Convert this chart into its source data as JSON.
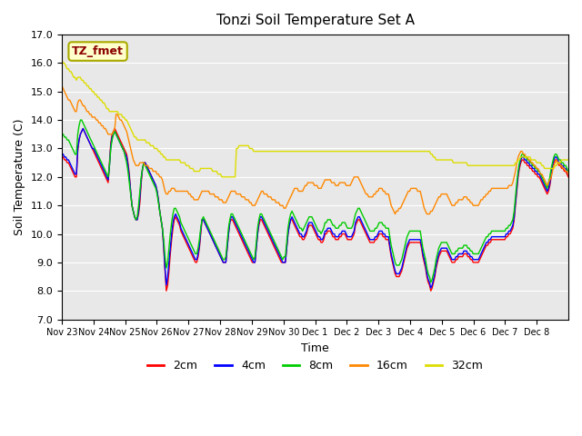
{
  "title": "Tonzi Soil Temperature Set A",
  "xlabel": "Time",
  "ylabel": "Soil Temperature (C)",
  "ylim": [
    7.0,
    17.0
  ],
  "yticks": [
    7.0,
    8.0,
    9.0,
    10.0,
    11.0,
    12.0,
    13.0,
    14.0,
    15.0,
    16.0,
    17.0
  ],
  "plot_bg_color": "#e8e8e8",
  "legend_label": "TZ_fmet",
  "series": {
    "2cm": {
      "color": "#ff0000"
    },
    "4cm": {
      "color": "#0000ff"
    },
    "8cm": {
      "color": "#00cc00"
    },
    "16cm": {
      "color": "#ff8800"
    },
    "32cm": {
      "color": "#dddd00"
    }
  },
  "xtick_labels": [
    "Nov 23",
    "Nov 24",
    "Nov 25",
    "Nov 26",
    "Nov 27",
    "Nov 28",
    "Nov 29",
    "Nov 30",
    "Dec 1",
    "Dec 2",
    "Dec 3",
    "Dec 4",
    "Dec 5",
    "Dec 6",
    "Dec 7",
    "Dec 8"
  ],
  "data_2cm": [
    12.7,
    12.7,
    12.6,
    12.6,
    12.5,
    12.5,
    12.4,
    12.3,
    12.2,
    12.1,
    12.0,
    12.0,
    12.9,
    13.3,
    13.5,
    13.6,
    13.7,
    13.6,
    13.5,
    13.4,
    13.3,
    13.2,
    13.1,
    13.0,
    12.9,
    12.8,
    12.7,
    12.6,
    12.5,
    12.4,
    12.3,
    12.2,
    12.1,
    12.0,
    11.9,
    11.8,
    12.5,
    13.2,
    13.5,
    13.6,
    13.7,
    13.6,
    13.5,
    13.4,
    13.3,
    13.2,
    13.1,
    13.0,
    12.9,
    12.8,
    12.5,
    12.1,
    11.5,
    11.0,
    10.8,
    10.6,
    10.5,
    10.5,
    10.7,
    11.1,
    11.8,
    12.3,
    12.5,
    12.5,
    12.4,
    12.3,
    12.2,
    12.1,
    12.0,
    11.9,
    11.8,
    11.7,
    11.5,
    11.2,
    10.8,
    10.5,
    10.2,
    9.5,
    8.7,
    8.0,
    8.2,
    8.7,
    9.3,
    9.8,
    10.2,
    10.5,
    10.6,
    10.5,
    10.4,
    10.3,
    10.1,
    10.0,
    9.9,
    9.8,
    9.7,
    9.6,
    9.5,
    9.4,
    9.3,
    9.2,
    9.1,
    9.0,
    9.0,
    9.2,
    9.5,
    10.0,
    10.5,
    10.5,
    10.4,
    10.3,
    10.2,
    10.1,
    10.0,
    9.9,
    9.8,
    9.7,
    9.6,
    9.5,
    9.4,
    9.3,
    9.2,
    9.1,
    9.0,
    9.0,
    9.0,
    9.5,
    10.0,
    10.4,
    10.5,
    10.5,
    10.4,
    10.3,
    10.2,
    10.1,
    10.0,
    9.9,
    9.8,
    9.7,
    9.6,
    9.5,
    9.4,
    9.3,
    9.2,
    9.1,
    9.0,
    9.0,
    9.0,
    9.5,
    10.0,
    10.3,
    10.5,
    10.5,
    10.4,
    10.3,
    10.2,
    10.1,
    10.0,
    9.9,
    9.8,
    9.7,
    9.6,
    9.5,
    9.4,
    9.3,
    9.2,
    9.1,
    9.0,
    9.0,
    9.0,
    9.0,
    9.5,
    10.0,
    10.3,
    10.5,
    10.5,
    10.4,
    10.3,
    10.2,
    10.1,
    10.0,
    9.9,
    9.9,
    9.8,
    9.8,
    9.9,
    10.0,
    10.2,
    10.3,
    10.3,
    10.3,
    10.2,
    10.1,
    10.0,
    9.9,
    9.8,
    9.8,
    9.7,
    9.7,
    9.8,
    10.0,
    10.0,
    10.1,
    10.1,
    10.1,
    10.0,
    9.9,
    9.9,
    9.8,
    9.8,
    9.8,
    9.9,
    9.9,
    10.0,
    10.0,
    10.0,
    9.9,
    9.8,
    9.8,
    9.8,
    9.8,
    9.9,
    10.0,
    10.3,
    10.4,
    10.5,
    10.5,
    10.4,
    10.3,
    10.2,
    10.1,
    10.0,
    9.9,
    9.8,
    9.7,
    9.7,
    9.7,
    9.7,
    9.8,
    9.8,
    9.9,
    10.0,
    10.0,
    10.0,
    9.9,
    9.9,
    9.8,
    9.8,
    9.8,
    9.5,
    9.2,
    9.0,
    8.8,
    8.6,
    8.5,
    8.5,
    8.5,
    8.6,
    8.7,
    8.9,
    9.1,
    9.3,
    9.5,
    9.6,
    9.7,
    9.7,
    9.7,
    9.7,
    9.7,
    9.7,
    9.7,
    9.7,
    9.7,
    9.5,
    9.2,
    9.0,
    8.8,
    8.5,
    8.3,
    8.2,
    8.0,
    8.1,
    8.3,
    8.5,
    8.8,
    9.0,
    9.2,
    9.3,
    9.4,
    9.4,
    9.4,
    9.4,
    9.4,
    9.3,
    9.2,
    9.1,
    9.0,
    9.0,
    9.0,
    9.1,
    9.1,
    9.2,
    9.2,
    9.2,
    9.2,
    9.3,
    9.3,
    9.3,
    9.2,
    9.2,
    9.1,
    9.1,
    9.0,
    9.0,
    9.0,
    9.0,
    9.0,
    9.1,
    9.2,
    9.3,
    9.4,
    9.5,
    9.6,
    9.6,
    9.7,
    9.7,
    9.8,
    9.8,
    9.8,
    9.8,
    9.8,
    9.8,
    9.8,
    9.8,
    9.8,
    9.8,
    9.8,
    9.9,
    9.9,
    10.0,
    10.0,
    10.1,
    10.2,
    10.5,
    11.0,
    11.5,
    12.0,
    12.3,
    12.5,
    12.6,
    12.6,
    12.5,
    12.5,
    12.4,
    12.4,
    12.3,
    12.3,
    12.2,
    12.2,
    12.1,
    12.1,
    12.0,
    12.0,
    11.9,
    11.8,
    11.7,
    11.6,
    11.5,
    11.4,
    11.5,
    11.7,
    12.0,
    12.3,
    12.5,
    12.6,
    12.6,
    12.5,
    12.4,
    12.4,
    12.3,
    12.3,
    12.2,
    12.2,
    12.1,
    12.0
  ],
  "data_4cm": [
    12.8,
    12.8,
    12.7,
    12.7,
    12.6,
    12.6,
    12.5,
    12.4,
    12.3,
    12.2,
    12.1,
    12.1,
    13.0,
    13.3,
    13.5,
    13.6,
    13.7,
    13.6,
    13.5,
    13.4,
    13.3,
    13.2,
    13.1,
    13.0,
    13.0,
    12.9,
    12.8,
    12.7,
    12.6,
    12.5,
    12.4,
    12.3,
    12.2,
    12.1,
    12.0,
    11.9,
    12.4,
    13.1,
    13.4,
    13.5,
    13.6,
    13.5,
    13.4,
    13.3,
    13.2,
    13.1,
    13.0,
    12.9,
    12.8,
    12.7,
    12.4,
    12.0,
    11.5,
    11.0,
    10.8,
    10.6,
    10.5,
    10.5,
    10.8,
    11.3,
    11.9,
    12.3,
    12.5,
    12.5,
    12.4,
    12.3,
    12.2,
    12.1,
    12.0,
    11.9,
    11.8,
    11.7,
    11.5,
    11.2,
    10.8,
    10.5,
    10.2,
    9.6,
    8.8,
    8.2,
    8.5,
    9.0,
    9.5,
    10.0,
    10.4,
    10.6,
    10.7,
    10.6,
    10.5,
    10.4,
    10.2,
    10.1,
    10.0,
    9.9,
    9.8,
    9.7,
    9.6,
    9.5,
    9.4,
    9.3,
    9.2,
    9.1,
    9.1,
    9.3,
    9.6,
    10.1,
    10.5,
    10.5,
    10.4,
    10.3,
    10.2,
    10.1,
    10.0,
    9.9,
    9.8,
    9.7,
    9.6,
    9.5,
    9.4,
    9.3,
    9.2,
    9.1,
    9.0,
    9.0,
    9.0,
    9.5,
    10.0,
    10.4,
    10.6,
    10.6,
    10.5,
    10.4,
    10.3,
    10.2,
    10.1,
    10.0,
    9.9,
    9.8,
    9.7,
    9.6,
    9.5,
    9.4,
    9.3,
    9.2,
    9.1,
    9.0,
    9.0,
    9.5,
    10.0,
    10.4,
    10.6,
    10.6,
    10.5,
    10.4,
    10.3,
    10.2,
    10.1,
    10.0,
    9.9,
    9.8,
    9.7,
    9.6,
    9.5,
    9.4,
    9.3,
    9.2,
    9.1,
    9.0,
    9.0,
    9.0,
    9.5,
    10.0,
    10.3,
    10.5,
    10.6,
    10.5,
    10.4,
    10.3,
    10.2,
    10.1,
    10.0,
    10.0,
    9.9,
    9.9,
    10.0,
    10.1,
    10.3,
    10.4,
    10.4,
    10.4,
    10.3,
    10.2,
    10.1,
    10.0,
    9.9,
    9.9,
    9.8,
    9.8,
    9.9,
    10.1,
    10.1,
    10.2,
    10.2,
    10.2,
    10.1,
    10.0,
    10.0,
    9.9,
    9.9,
    9.9,
    10.0,
    10.0,
    10.1,
    10.1,
    10.1,
    10.0,
    9.9,
    9.9,
    9.9,
    9.9,
    10.0,
    10.1,
    10.4,
    10.5,
    10.6,
    10.6,
    10.5,
    10.4,
    10.3,
    10.2,
    10.1,
    10.0,
    9.9,
    9.8,
    9.8,
    9.8,
    9.8,
    9.9,
    9.9,
    10.0,
    10.1,
    10.1,
    10.1,
    10.0,
    10.0,
    9.9,
    9.9,
    9.9,
    9.6,
    9.3,
    9.1,
    8.9,
    8.7,
    8.6,
    8.6,
    8.6,
    8.7,
    8.8,
    9.0,
    9.2,
    9.4,
    9.6,
    9.7,
    9.8,
    9.8,
    9.8,
    9.8,
    9.8,
    9.8,
    9.8,
    9.8,
    9.8,
    9.6,
    9.3,
    9.1,
    8.9,
    8.6,
    8.4,
    8.3,
    8.1,
    8.2,
    8.4,
    8.6,
    8.9,
    9.1,
    9.3,
    9.4,
    9.5,
    9.5,
    9.5,
    9.5,
    9.5,
    9.4,
    9.3,
    9.2,
    9.1,
    9.1,
    9.1,
    9.2,
    9.2,
    9.3,
    9.3,
    9.3,
    9.3,
    9.4,
    9.4,
    9.4,
    9.3,
    9.3,
    9.2,
    9.2,
    9.1,
    9.1,
    9.1,
    9.1,
    9.1,
    9.2,
    9.3,
    9.4,
    9.5,
    9.6,
    9.7,
    9.7,
    9.8,
    9.8,
    9.9,
    9.9,
    9.9,
    9.9,
    9.9,
    9.9,
    9.9,
    9.9,
    9.9,
    9.9,
    9.9,
    10.0,
    10.0,
    10.1,
    10.1,
    10.2,
    10.3,
    10.6,
    11.1,
    11.6,
    12.1,
    12.4,
    12.6,
    12.7,
    12.7,
    12.6,
    12.6,
    12.5,
    12.5,
    12.4,
    12.4,
    12.3,
    12.3,
    12.2,
    12.2,
    12.1,
    12.1,
    12.0,
    11.9,
    11.8,
    11.7,
    11.6,
    11.5,
    11.6,
    11.8,
    12.1,
    12.4,
    12.6,
    12.7,
    12.7,
    12.6,
    12.5,
    12.5,
    12.4,
    12.4,
    12.3,
    12.3,
    12.2,
    12.1
  ],
  "data_8cm": [
    13.5,
    13.5,
    13.4,
    13.4,
    13.3,
    13.3,
    13.2,
    13.1,
    13.0,
    12.9,
    12.8,
    12.8,
    13.5,
    13.8,
    14.0,
    14.0,
    13.9,
    13.8,
    13.7,
    13.6,
    13.5,
    13.4,
    13.3,
    13.2,
    13.1,
    13.0,
    12.9,
    12.8,
    12.7,
    12.6,
    12.5,
    12.4,
    12.3,
    12.2,
    12.1,
    12.0,
    12.4,
    13.0,
    13.3,
    13.5,
    13.6,
    13.5,
    13.4,
    13.3,
    13.2,
    13.1,
    13.0,
    12.9,
    12.7,
    12.5,
    12.2,
    11.8,
    11.4,
    11.0,
    10.8,
    10.6,
    10.5,
    10.6,
    11.0,
    11.5,
    12.0,
    12.3,
    12.5,
    12.4,
    12.3,
    12.2,
    12.1,
    12.0,
    11.9,
    11.8,
    11.7,
    11.6,
    11.4,
    11.1,
    10.8,
    10.5,
    10.2,
    9.8,
    9.2,
    8.8,
    9.0,
    9.5,
    10.0,
    10.4,
    10.7,
    10.9,
    10.9,
    10.8,
    10.7,
    10.6,
    10.4,
    10.3,
    10.2,
    10.1,
    10.0,
    9.9,
    9.8,
    9.7,
    9.6,
    9.5,
    9.4,
    9.3,
    9.3,
    9.5,
    9.8,
    10.2,
    10.5,
    10.6,
    10.5,
    10.4,
    10.3,
    10.2,
    10.1,
    10.0,
    9.9,
    9.8,
    9.7,
    9.6,
    9.5,
    9.4,
    9.3,
    9.2,
    9.1,
    9.1,
    9.2,
    9.7,
    10.2,
    10.5,
    10.7,
    10.7,
    10.6,
    10.5,
    10.4,
    10.3,
    10.2,
    10.1,
    10.0,
    9.9,
    9.8,
    9.7,
    9.6,
    9.5,
    9.4,
    9.3,
    9.2,
    9.1,
    9.2,
    9.7,
    10.2,
    10.5,
    10.7,
    10.7,
    10.6,
    10.5,
    10.4,
    10.3,
    10.2,
    10.1,
    10.0,
    9.9,
    9.8,
    9.7,
    9.6,
    9.5,
    9.4,
    9.3,
    9.2,
    9.1,
    9.2,
    9.2,
    9.7,
    10.2,
    10.5,
    10.7,
    10.8,
    10.7,
    10.6,
    10.5,
    10.4,
    10.3,
    10.2,
    10.2,
    10.1,
    10.2,
    10.3,
    10.4,
    10.5,
    10.6,
    10.6,
    10.6,
    10.5,
    10.4,
    10.3,
    10.2,
    10.1,
    10.1,
    10.0,
    10.1,
    10.2,
    10.4,
    10.4,
    10.5,
    10.5,
    10.5,
    10.4,
    10.3,
    10.3,
    10.2,
    10.2,
    10.2,
    10.3,
    10.3,
    10.4,
    10.4,
    10.4,
    10.3,
    10.2,
    10.2,
    10.2,
    10.2,
    10.3,
    10.5,
    10.7,
    10.8,
    10.9,
    10.9,
    10.8,
    10.7,
    10.6,
    10.5,
    10.4,
    10.3,
    10.2,
    10.1,
    10.1,
    10.1,
    10.1,
    10.2,
    10.2,
    10.3,
    10.4,
    10.4,
    10.4,
    10.3,
    10.3,
    10.2,
    10.2,
    10.2,
    9.9,
    9.6,
    9.4,
    9.2,
    9.0,
    8.9,
    8.9,
    8.9,
    9.0,
    9.1,
    9.3,
    9.5,
    9.7,
    9.9,
    10.0,
    10.1,
    10.1,
    10.1,
    10.1,
    10.1,
    10.1,
    10.1,
    10.1,
    10.1,
    9.8,
    9.5,
    9.3,
    9.1,
    8.8,
    8.6,
    8.5,
    8.3,
    8.4,
    8.6,
    8.8,
    9.1,
    9.3,
    9.5,
    9.6,
    9.7,
    9.7,
    9.7,
    9.7,
    9.7,
    9.6,
    9.5,
    9.4,
    9.3,
    9.3,
    9.3,
    9.4,
    9.4,
    9.5,
    9.5,
    9.5,
    9.5,
    9.6,
    9.6,
    9.6,
    9.5,
    9.5,
    9.4,
    9.4,
    9.3,
    9.3,
    9.3,
    9.3,
    9.3,
    9.4,
    9.5,
    9.6,
    9.7,
    9.8,
    9.9,
    9.9,
    10.0,
    10.0,
    10.1,
    10.1,
    10.1,
    10.1,
    10.1,
    10.1,
    10.1,
    10.1,
    10.1,
    10.1,
    10.1,
    10.2,
    10.2,
    10.3,
    10.3,
    10.4,
    10.5,
    10.8,
    11.3,
    11.8,
    12.2,
    12.5,
    12.7,
    12.8,
    12.8,
    12.7,
    12.7,
    12.6,
    12.6,
    12.5,
    12.5,
    12.4,
    12.4,
    12.3,
    12.3,
    12.2,
    12.2,
    12.1,
    12.0,
    11.9,
    11.8,
    11.7,
    11.6,
    11.8,
    12.0,
    12.3,
    12.5,
    12.7,
    12.8,
    12.8,
    12.7,
    12.6,
    12.6,
    12.5,
    12.5,
    12.4,
    12.4,
    12.3,
    12.2
  ],
  "data_16cm": [
    15.2,
    15.1,
    15.0,
    14.9,
    14.8,
    14.7,
    14.7,
    14.6,
    14.5,
    14.4,
    14.3,
    14.3,
    14.6,
    14.7,
    14.7,
    14.6,
    14.5,
    14.5,
    14.4,
    14.3,
    14.3,
    14.2,
    14.2,
    14.1,
    14.1,
    14.1,
    14.0,
    14.0,
    13.9,
    13.9,
    13.8,
    13.8,
    13.7,
    13.7,
    13.6,
    13.5,
    13.5,
    13.5,
    13.5,
    13.6,
    13.7,
    14.2,
    14.2,
    14.1,
    14.0,
    14.0,
    13.9,
    13.8,
    13.7,
    13.6,
    13.4,
    13.2,
    13.0,
    12.8,
    12.6,
    12.5,
    12.4,
    12.4,
    12.4,
    12.5,
    12.5,
    12.5,
    12.5,
    12.4,
    12.4,
    12.4,
    12.3,
    12.3,
    12.3,
    12.2,
    12.2,
    12.2,
    12.1,
    12.1,
    12.0,
    12.0,
    11.9,
    11.7,
    11.5,
    11.4,
    11.4,
    11.5,
    11.5,
    11.6,
    11.6,
    11.6,
    11.5,
    11.5,
    11.5,
    11.5,
    11.5,
    11.5,
    11.5,
    11.5,
    11.5,
    11.5,
    11.4,
    11.4,
    11.3,
    11.3,
    11.2,
    11.2,
    11.2,
    11.2,
    11.3,
    11.4,
    11.5,
    11.5,
    11.5,
    11.5,
    11.5,
    11.5,
    11.4,
    11.4,
    11.4,
    11.4,
    11.3,
    11.3,
    11.3,
    11.2,
    11.2,
    11.2,
    11.1,
    11.1,
    11.1,
    11.2,
    11.3,
    11.4,
    11.5,
    11.5,
    11.5,
    11.5,
    11.4,
    11.4,
    11.4,
    11.4,
    11.3,
    11.3,
    11.3,
    11.2,
    11.2,
    11.2,
    11.1,
    11.1,
    11.0,
    11.0,
    11.0,
    11.1,
    11.2,
    11.3,
    11.4,
    11.5,
    11.5,
    11.4,
    11.4,
    11.4,
    11.3,
    11.3,
    11.3,
    11.2,
    11.2,
    11.2,
    11.1,
    11.1,
    11.1,
    11.0,
    11.0,
    11.0,
    10.9,
    10.9,
    11.0,
    11.1,
    11.2,
    11.3,
    11.4,
    11.5,
    11.6,
    11.6,
    11.6,
    11.5,
    11.5,
    11.5,
    11.5,
    11.6,
    11.7,
    11.7,
    11.8,
    11.8,
    11.8,
    11.8,
    11.8,
    11.7,
    11.7,
    11.7,
    11.6,
    11.6,
    11.6,
    11.7,
    11.8,
    11.9,
    11.9,
    11.9,
    11.9,
    11.9,
    11.8,
    11.8,
    11.8,
    11.7,
    11.7,
    11.7,
    11.8,
    11.8,
    11.8,
    11.8,
    11.8,
    11.7,
    11.7,
    11.7,
    11.7,
    11.8,
    11.9,
    12.0,
    12.0,
    12.0,
    12.0,
    11.9,
    11.8,
    11.7,
    11.6,
    11.5,
    11.4,
    11.4,
    11.3,
    11.3,
    11.3,
    11.3,
    11.4,
    11.4,
    11.5,
    11.5,
    11.6,
    11.6,
    11.6,
    11.5,
    11.5,
    11.4,
    11.4,
    11.4,
    11.2,
    11.0,
    10.9,
    10.8,
    10.7,
    10.8,
    10.8,
    10.9,
    10.9,
    11.0,
    11.1,
    11.2,
    11.3,
    11.4,
    11.5,
    11.5,
    11.6,
    11.6,
    11.6,
    11.6,
    11.6,
    11.5,
    11.5,
    11.5,
    11.3,
    11.1,
    10.9,
    10.8,
    10.7,
    10.7,
    10.7,
    10.8,
    10.8,
    10.9,
    11.0,
    11.1,
    11.2,
    11.3,
    11.3,
    11.4,
    11.4,
    11.4,
    11.4,
    11.4,
    11.3,
    11.2,
    11.1,
    11.0,
    11.0,
    11.0,
    11.1,
    11.1,
    11.2,
    11.2,
    11.2,
    11.2,
    11.3,
    11.3,
    11.3,
    11.2,
    11.2,
    11.1,
    11.1,
    11.0,
    11.0,
    11.0,
    11.0,
    11.0,
    11.1,
    11.2,
    11.2,
    11.3,
    11.3,
    11.4,
    11.4,
    11.5,
    11.5,
    11.6,
    11.6,
    11.6,
    11.6,
    11.6,
    11.6,
    11.6,
    11.6,
    11.6,
    11.6,
    11.6,
    11.6,
    11.6,
    11.7,
    11.7,
    11.7,
    11.8,
    12.0,
    12.2,
    12.5,
    12.7,
    12.8,
    12.9,
    12.9,
    12.8,
    12.8,
    12.7,
    12.7,
    12.6,
    12.6,
    12.5,
    12.5,
    12.4,
    12.4,
    12.3,
    12.3,
    12.2,
    12.1,
    12.1,
    12.0,
    11.9,
    11.8,
    11.7,
    11.8,
    11.9,
    12.0,
    12.2,
    12.4,
    12.5,
    12.6,
    12.5,
    12.5,
    12.4,
    12.4,
    12.3,
    12.3,
    12.2,
    12.2,
    12.1
  ],
  "data_32cm": [
    16.1,
    16.0,
    16.0,
    15.9,
    15.8,
    15.8,
    15.7,
    15.7,
    15.6,
    15.5,
    15.5,
    15.4,
    15.5,
    15.5,
    15.5,
    15.4,
    15.4,
    15.3,
    15.3,
    15.2,
    15.2,
    15.1,
    15.1,
    15.0,
    15.0,
    14.9,
    14.9,
    14.8,
    14.8,
    14.7,
    14.7,
    14.6,
    14.6,
    14.5,
    14.4,
    14.4,
    14.3,
    14.3,
    14.3,
    14.3,
    14.3,
    14.3,
    14.3,
    14.2,
    14.2,
    14.2,
    14.1,
    14.1,
    14.0,
    14.0,
    13.9,
    13.8,
    13.7,
    13.6,
    13.5,
    13.4,
    13.4,
    13.3,
    13.3,
    13.3,
    13.3,
    13.3,
    13.3,
    13.3,
    13.2,
    13.2,
    13.2,
    13.1,
    13.1,
    13.1,
    13.0,
    13.0,
    13.0,
    12.9,
    12.9,
    12.8,
    12.8,
    12.7,
    12.7,
    12.6,
    12.6,
    12.6,
    12.6,
    12.6,
    12.6,
    12.6,
    12.6,
    12.6,
    12.6,
    12.6,
    12.5,
    12.5,
    12.5,
    12.5,
    12.4,
    12.4,
    12.4,
    12.3,
    12.3,
    12.3,
    12.2,
    12.2,
    12.2,
    12.2,
    12.2,
    12.3,
    12.3,
    12.3,
    12.3,
    12.3,
    12.3,
    12.3,
    12.3,
    12.3,
    12.2,
    12.2,
    12.2,
    12.2,
    12.1,
    12.1,
    12.1,
    12.0,
    12.0,
    12.0,
    12.0,
    12.0,
    12.0,
    12.0,
    12.0,
    12.0,
    12.0,
    12.0,
    13.0,
    13.0,
    13.1,
    13.1,
    13.1,
    13.1,
    13.1,
    13.1,
    13.1,
    13.1,
    13.0,
    13.0,
    13.0,
    12.9,
    12.9,
    12.9,
    12.9,
    12.9,
    12.9,
    12.9,
    12.9,
    12.9,
    12.9,
    12.9,
    12.9,
    12.9,
    12.9,
    12.9,
    12.9,
    12.9,
    12.9,
    12.9,
    12.9,
    12.9,
    12.9,
    12.9,
    12.9,
    12.9,
    12.9,
    12.9,
    12.9,
    12.9,
    12.9,
    12.9,
    12.9,
    12.9,
    12.9,
    12.9,
    12.9,
    12.9,
    12.9,
    12.9,
    12.9,
    12.9,
    12.9,
    12.9,
    12.9,
    12.9,
    12.9,
    12.9,
    12.9,
    12.9,
    12.9,
    12.9,
    12.9,
    12.9,
    12.9,
    12.9,
    12.9,
    12.9,
    12.9,
    12.9,
    12.9,
    12.9,
    12.9,
    12.9,
    12.9,
    12.9,
    12.9,
    12.9,
    12.9,
    12.9,
    12.9,
    12.9,
    12.9,
    12.9,
    12.9,
    12.9,
    12.9,
    12.9,
    12.9,
    12.9,
    12.9,
    12.9,
    12.9,
    12.9,
    12.9,
    12.9,
    12.9,
    12.9,
    12.9,
    12.9,
    12.9,
    12.9,
    12.9,
    12.9,
    12.9,
    12.9,
    12.9,
    12.9,
    12.9,
    12.9,
    12.9,
    12.9,
    12.9,
    12.9,
    12.9,
    12.9,
    12.9,
    12.9,
    12.9,
    12.9,
    12.9,
    12.9,
    12.9,
    12.9,
    12.9,
    12.9,
    12.9,
    12.9,
    12.9,
    12.9,
    12.9,
    12.9,
    12.9,
    12.9,
    12.9,
    12.9,
    12.9,
    12.9,
    12.9,
    12.9,
    12.9,
    12.9,
    12.9,
    12.9,
    12.9,
    12.8,
    12.8,
    12.7,
    12.7,
    12.6,
    12.6,
    12.6,
    12.6,
    12.6,
    12.6,
    12.6,
    12.6,
    12.6,
    12.6,
    12.6,
    12.6,
    12.6,
    12.5,
    12.5,
    12.5,
    12.5,
    12.5,
    12.5,
    12.5,
    12.5,
    12.5,
    12.5,
    12.5,
    12.4,
    12.4,
    12.4,
    12.4,
    12.4,
    12.4,
    12.4,
    12.4,
    12.4,
    12.4,
    12.4,
    12.4,
    12.4,
    12.4,
    12.4,
    12.4,
    12.4,
    12.4,
    12.4,
    12.4,
    12.4,
    12.4,
    12.4,
    12.4,
    12.4,
    12.4,
    12.4,
    12.4,
    12.4,
    12.4,
    12.4,
    12.4,
    12.4,
    12.4,
    12.4,
    12.4,
    12.5,
    12.5,
    12.6,
    12.6,
    12.7,
    12.7,
    12.7,
    12.7,
    12.7,
    12.7,
    12.7,
    12.7,
    12.6,
    12.6,
    12.6,
    12.6,
    12.5,
    12.5,
    12.5,
    12.5,
    12.4,
    12.4,
    12.3,
    12.3,
    12.3,
    12.3,
    12.3,
    12.3,
    12.3,
    12.3,
    12.4,
    12.4,
    12.5,
    12.5,
    12.5,
    12.6,
    12.6,
    12.6,
    12.6,
    12.6,
    12.6
  ]
}
